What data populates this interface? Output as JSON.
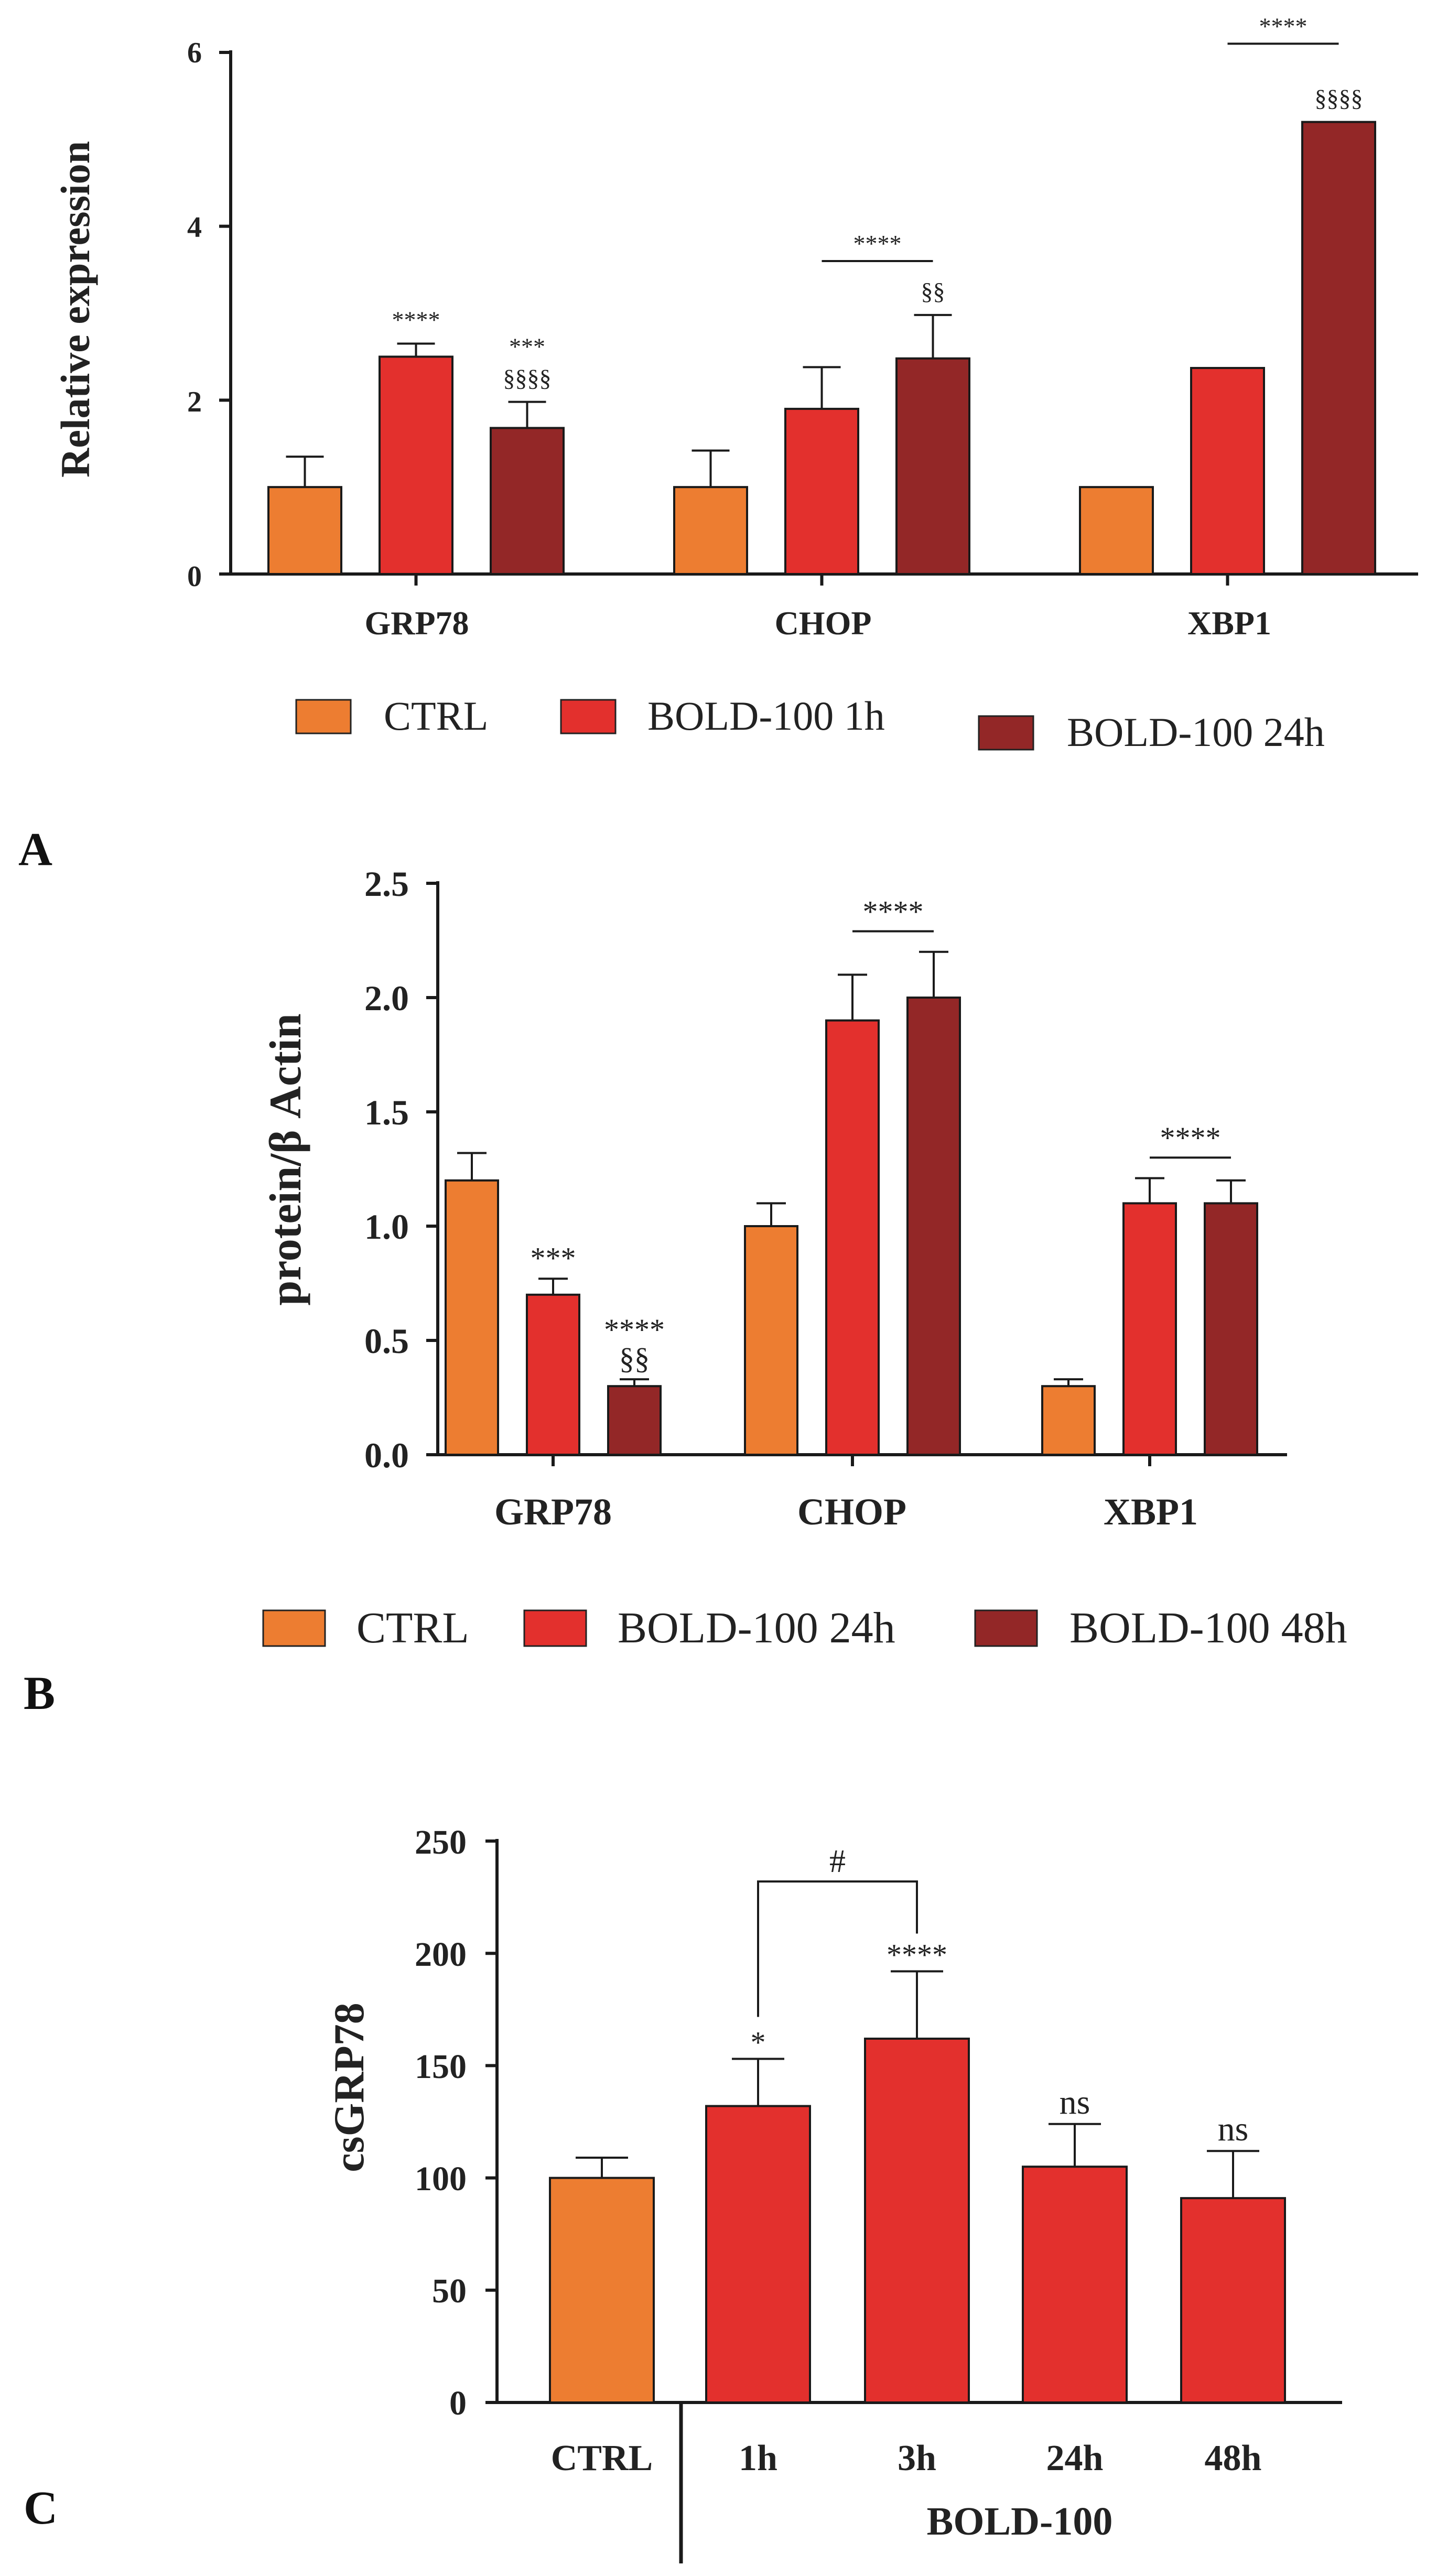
{
  "colors": {
    "ctrl": "#ED7D31",
    "red": "#E3302D",
    "dark": "#932727",
    "axis": "#1a1a1a"
  },
  "chart_data": [
    {
      "panel": "A",
      "type": "bar",
      "ylabel": "Relative expression",
      "ylim": [
        0,
        6
      ],
      "yticks": [
        "0",
        "2",
        "4",
        "6"
      ],
      "categories": [
        "GRP78",
        "CHOP",
        "XBP1"
      ],
      "series": [
        {
          "name": "CTRL",
          "values": [
            1.0,
            1.0,
            1.0
          ],
          "errors": [
            0.35,
            0.42,
            0
          ]
        },
        {
          "name": "BOLD-100 1h",
          "values": [
            2.5,
            1.9,
            2.37
          ],
          "errors": [
            0.15,
            0.48,
            0
          ]
        },
        {
          "name": "BOLD-100 24h",
          "values": [
            1.68,
            2.48,
            5.2
          ],
          "errors": [
            0.3,
            0.5,
            0
          ]
        }
      ],
      "annotations": [
        {
          "text": "****",
          "cat": 0,
          "series": 1,
          "level": 0
        },
        {
          "text": "***",
          "cat": 0,
          "series": 2,
          "level": 1
        },
        {
          "text": "§§§§",
          "cat": 0,
          "series": 2,
          "level": 0
        },
        {
          "text": "§§",
          "cat": 1,
          "series": 2,
          "level": 0
        },
        {
          "text": "§§§§",
          "cat": 2,
          "series": 2,
          "level": 0
        }
      ],
      "brackets": [
        {
          "text": "****",
          "cat": 1,
          "from": 1,
          "to": 2,
          "y": 3.6
        },
        {
          "text": "****",
          "cat": 2,
          "from": 1,
          "to": 2,
          "y": 6.1
        }
      ]
    },
    {
      "panel": "B",
      "type": "bar",
      "ylabel": "protein/β Actin",
      "ylim": [
        0,
        2.5
      ],
      "yticks": [
        "0.0",
        "0.5",
        "1.0",
        "1.5",
        "2.0",
        "2.5"
      ],
      "categories": [
        "GRP78",
        "CHOP",
        "XBP1"
      ],
      "series": [
        {
          "name": "CTRL",
          "values": [
            1.2,
            1.0,
            0.3
          ],
          "errors": [
            0.12,
            0.1,
            0.03
          ]
        },
        {
          "name": "BOLD-100 24h",
          "values": [
            0.7,
            1.9,
            1.1
          ],
          "errors": [
            0.07,
            0.2,
            0.11
          ]
        },
        {
          "name": "BOLD-100 48h",
          "values": [
            0.3,
            2.0,
            1.1
          ],
          "errors": [
            0.03,
            0.2,
            0.1
          ]
        }
      ],
      "annotations": [
        {
          "text": "***",
          "cat": 0,
          "series": 1,
          "level": 0
        },
        {
          "text": "****",
          "cat": 0,
          "series": 2,
          "level": 1
        },
        {
          "text": "§§",
          "cat": 0,
          "series": 2,
          "level": 0
        }
      ],
      "brackets": [
        {
          "text": "****",
          "cat": 1,
          "from": 1,
          "to": 2,
          "y": 2.29
        },
        {
          "text": "****",
          "cat": 2,
          "from": 1,
          "to": 2,
          "y": 1.3
        }
      ]
    },
    {
      "panel": "C",
      "type": "bar",
      "ylabel": "csGRP78",
      "ylim": [
        0,
        250
      ],
      "yticks": [
        "0",
        "50",
        "100",
        "150",
        "200",
        "250"
      ],
      "categories": [
        "CTRL",
        "1h",
        "3h",
        "24h",
        "48h"
      ],
      "group_label": "BOLD-100",
      "values": [
        100,
        132,
        162,
        105,
        91
      ],
      "errors": [
        9,
        21,
        30,
        19,
        21
      ],
      "annotations": [
        "",
        "*",
        "****",
        "ns",
        "ns"
      ],
      "bracket": {
        "text": "#",
        "from": 1,
        "to": 2,
        "y": 232
      }
    }
  ]
}
